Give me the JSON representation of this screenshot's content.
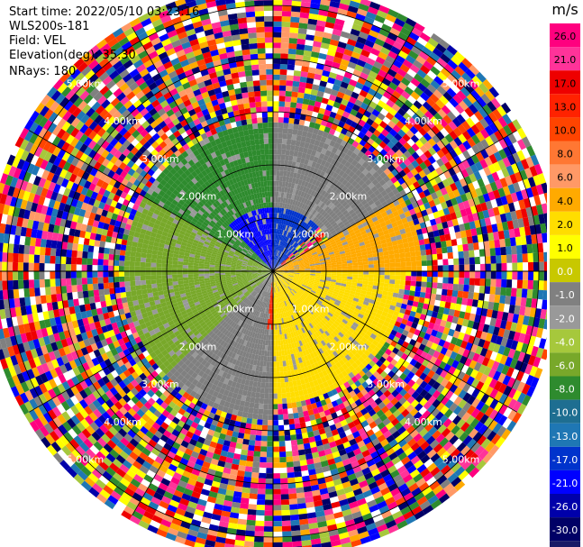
{
  "header": {
    "start_time": "Start time: 2022/05/10 03:23:16",
    "instrument": "WLS200s-181",
    "field": "Field: VEL",
    "elevation": "Elevation(deg): 35.30",
    "nrays": "NRays: 180"
  },
  "chart_data": {
    "type": "heatmap",
    "projection": "polar PPI",
    "field": "VEL",
    "units": "m/s",
    "nrays": 180,
    "range_rings_km": [
      1,
      2,
      3,
      4,
      5
    ],
    "ring_labels": [
      "1.00km",
      "2.00km",
      "3.00km",
      "4.00km",
      "5.00km"
    ],
    "spokes_deg": [
      0,
      30,
      60,
      90,
      120,
      150,
      180,
      210,
      240,
      270,
      300,
      330
    ],
    "colorbar": {
      "unit_label": "m/s",
      "ticks": [
        "26.0",
        "21.0",
        "17.0",
        "13.0",
        "10.0",
        "8.0",
        "6.0",
        "4.0",
        "2.0",
        "1.0",
        "0.0",
        "-1.0",
        "-2.0",
        "-4.0",
        "-6.0",
        "-8.0",
        "-10.0",
        "-13.0",
        "-17.0",
        "-21.0",
        "-26.0",
        "-30.0"
      ],
      "colors": [
        "#ff007f",
        "#ff3399",
        "#ee0000",
        "#ff2200",
        "#ff4400",
        "#ff7733",
        "#ff9966",
        "#ffaa00",
        "#ffdd00",
        "#ffff00",
        "#c8c800",
        "#808080",
        "#999999",
        "#a6c83c",
        "#78a82a",
        "#2e8b2e",
        "#1e6e91",
        "#1f77b4",
        "#0033cc",
        "#0000ff",
        "#0000aa",
        "#000066",
        "#1a1a66"
      ]
    },
    "pattern": [
      {
        "az_start": 315,
        "az_end": 360,
        "range_km": [
          0,
          1.2
        ],
        "color": "#0000ff"
      },
      {
        "az_start": 0,
        "az_end": 45,
        "range_km": [
          0,
          1.2
        ],
        "color": "#0033cc"
      },
      {
        "az_start": 90,
        "az_end": 180,
        "range_km": [
          0,
          2.5
        ],
        "color": "#ffdd00"
      },
      {
        "az_start": 125,
        "az_end": 185,
        "range_km": [
          0,
          1.0
        ],
        "color": "#ff2200"
      },
      {
        "az_start": 180,
        "az_end": 225,
        "range_km": [
          0,
          2.8
        ],
        "color": "#808080"
      },
      {
        "az_start": 225,
        "az_end": 300,
        "range_km": [
          0,
          2.8
        ],
        "color": "#78a82a"
      },
      {
        "az_start": 300,
        "az_end": 360,
        "range_km": [
          0,
          2.8
        ],
        "color": "#2e8b2e"
      },
      {
        "az_start": 0,
        "az_end": 60,
        "range_km": [
          1.2,
          2.8
        ],
        "color": "#808080"
      },
      {
        "az_start": 60,
        "az_end": 90,
        "range_km": [
          0,
          2.8
        ],
        "color": "#ffaa00"
      }
    ]
  }
}
